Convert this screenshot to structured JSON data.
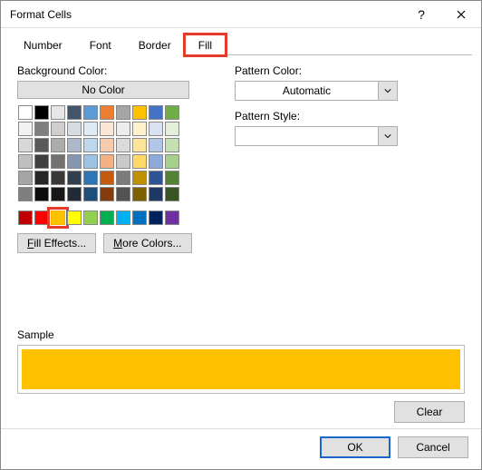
{
  "dialog": {
    "title": "Format Cells",
    "tabs": [
      "Number",
      "Font",
      "Border",
      "Fill"
    ],
    "activeTabIndex": 3,
    "highlightTabIndex": 3
  },
  "left": {
    "bgLabel": "Background Color:",
    "noColor": "No Color",
    "row1": [
      "#ffffff",
      "#000000",
      "#5a0f0f",
      "#003300",
      "#003366",
      "#000080",
      "#333399",
      "#333333"
    ],
    "row2": [
      "#800000",
      "#ff6600",
      "#808000",
      "#008000",
      "#008080",
      "#0000ff",
      "#666699",
      "#808080"
    ],
    "row3": [
      "#ff0000",
      "#ff9900",
      "#99cc00",
      "#339966",
      "#33cccc",
      "#3366ff",
      "#800080",
      "#969696"
    ],
    "row4": [
      "#ff00ff",
      "#ffcc00",
      "#ffff00",
      "#00ff00",
      "#00ffff",
      "#00ccff",
      "#993366",
      "#c0c0c0"
    ],
    "themeRows": [
      [
        "#ffffff",
        "#000000",
        "#e7e6e6",
        "#44546a",
        "#5b9bd5",
        "#ed7d31",
        "#a5a5a5",
        "#ffc000",
        "#4472c4",
        "#70ad47"
      ],
      [
        "#f2f2f2",
        "#7f7f7f",
        "#d0cece",
        "#d6dce4",
        "#deebf6",
        "#fbe5d5",
        "#ededed",
        "#fff2cc",
        "#d9e2f3",
        "#e2efd9"
      ],
      [
        "#d8d8d8",
        "#595959",
        "#aeabab",
        "#adb9ca",
        "#bdd7ee",
        "#f7cbac",
        "#dbdbdb",
        "#fee599",
        "#b4c6e7",
        "#c5e0b3"
      ],
      [
        "#bfbfbf",
        "#3f3f3f",
        "#757070",
        "#8496b0",
        "#9cc3e5",
        "#f4b183",
        "#c9c9c9",
        "#ffd965",
        "#8eaadb",
        "#a8d08d"
      ],
      [
        "#a5a5a5",
        "#262626",
        "#3a3838",
        "#323f4f",
        "#2e75b5",
        "#c55a11",
        "#7b7b7b",
        "#bf9000",
        "#2f5496",
        "#538135"
      ],
      [
        "#7f7f7f",
        "#0c0c0c",
        "#171616",
        "#222a35",
        "#1e4e79",
        "#833c0b",
        "#525252",
        "#7f6000",
        "#1f3864",
        "#375623"
      ]
    ],
    "stdRow": [
      "#c00000",
      "#ff0000",
      "#ffc000",
      "#ffff00",
      "#92d050",
      "#00b050",
      "#00b0f0",
      "#0070c0",
      "#002060",
      "#7030a0"
    ],
    "selectedStdIndex": 2,
    "fillEffects": "Fill Effects...",
    "moreColors": "More Colors..."
  },
  "right": {
    "patternColorLabel": "Pattern Color:",
    "patternColorValue": "Automatic",
    "patternStyleLabel": "Pattern Style:",
    "patternStyleValue": ""
  },
  "sample": {
    "label": "Sample",
    "color": "#ffc000"
  },
  "buttons": {
    "clear": "Clear",
    "ok": "OK",
    "cancel": "Cancel"
  }
}
